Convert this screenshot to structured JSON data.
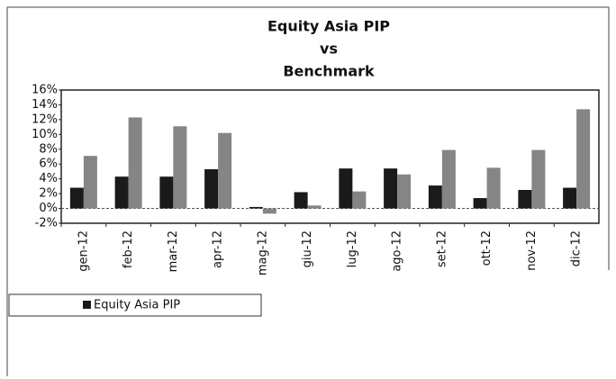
{
  "chart_data": {
    "type": "bar",
    "title": [
      "Equity Asia PIP",
      "vs",
      "Benchmark"
    ],
    "categories": [
      "gen-12",
      "feb-12",
      "mar-12",
      "apr-12",
      "mag-12",
      "giu-12",
      "lug-12",
      "ago-12",
      "set-12",
      "ott-12",
      "nov-12",
      "dic-12"
    ],
    "series": [
      {
        "name": "Equity Asia PIP",
        "color": "#1a1a1a",
        "values": [
          2.8,
          4.3,
          4.3,
          5.3,
          0.2,
          2.2,
          5.4,
          5.4,
          3.1,
          1.4,
          2.5,
          2.8
        ]
      },
      {
        "color": "#858585",
        "values": [
          7.1,
          12.3,
          11.1,
          10.2,
          -0.7,
          0.4,
          2.3,
          4.6,
          7.9,
          5.5,
          7.9,
          13.4
        ]
      }
    ],
    "ylim": [
      -2,
      16
    ],
    "yticks": [
      {
        "value": -2,
        "label": "-2%"
      },
      {
        "value": 0,
        "label": "0%"
      },
      {
        "value": 2,
        "label": "2%"
      },
      {
        "value": 4,
        "label": "4%"
      },
      {
        "value": 6,
        "label": "6%"
      },
      {
        "value": 8,
        "label": "8%"
      },
      {
        "value": 10,
        "label": "10%"
      },
      {
        "value": 12,
        "label": "12%"
      },
      {
        "value": 14,
        "label": "14%"
      },
      {
        "value": 16,
        "label": "16%"
      }
    ],
    "grid": false
  }
}
